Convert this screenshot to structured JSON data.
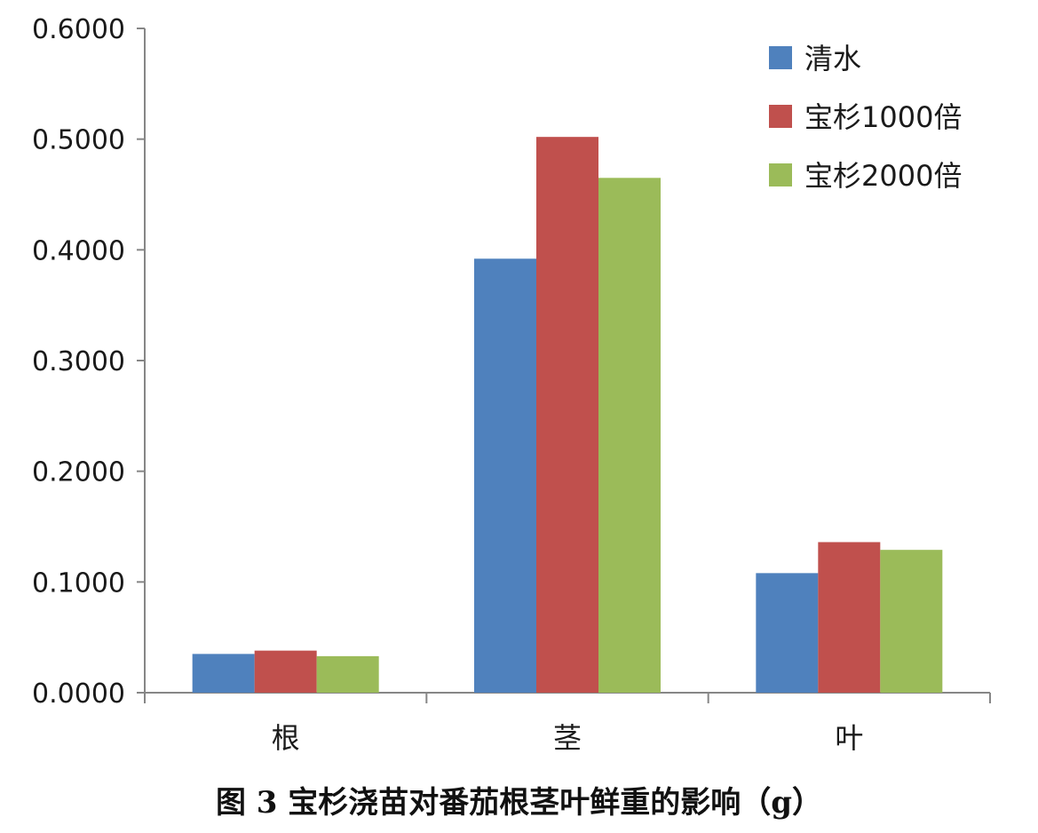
{
  "caption": "图 3  宝杉浇苗对番茄根茎叶鲜重的影响（g）",
  "chart_data": {
    "type": "bar",
    "categories": [
      "根",
      "茎",
      "叶"
    ],
    "series": [
      {
        "name": "清水",
        "values": [
          0.035,
          0.392,
          0.108
        ],
        "color": "#4f81bd"
      },
      {
        "name": "宝杉1000倍",
        "values": [
          0.038,
          0.502,
          0.136
        ],
        "color": "#c0504d"
      },
      {
        "name": "宝杉2000倍",
        "values": [
          0.033,
          0.465,
          0.129
        ],
        "color": "#9bbb59"
      }
    ],
    "yticks": [
      "0.0000",
      "0.1000",
      "0.2000",
      "0.3000",
      "0.4000",
      "0.5000",
      "0.6000"
    ],
    "ylim": [
      0,
      0.6
    ],
    "grid": false,
    "legend_position": "top-right"
  }
}
